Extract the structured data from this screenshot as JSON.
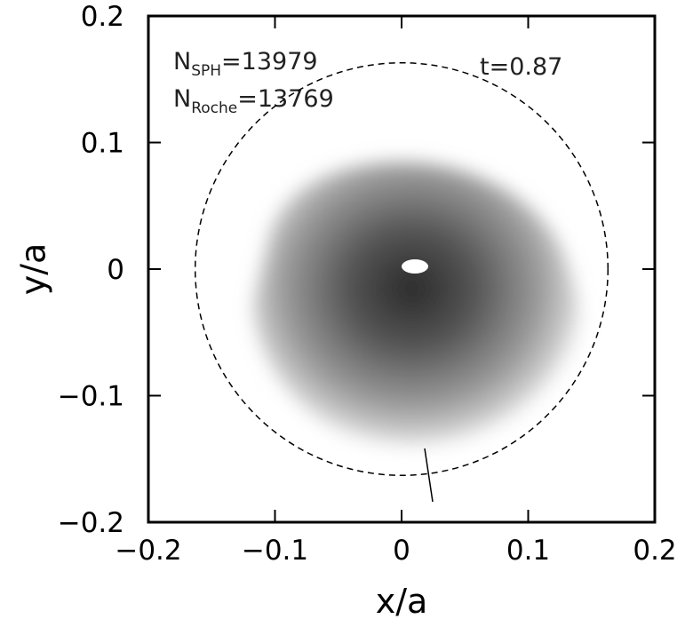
{
  "chart_data": {
    "type": "density-map",
    "xlabel": "x/a",
    "ylabel": "y/a",
    "xlim": [
      -0.2,
      0.2
    ],
    "ylim": [
      -0.2,
      0.2
    ],
    "xticks": [
      {
        "value": -0.2,
        "label": "−0.2"
      },
      {
        "value": -0.1,
        "label": "−0.1"
      },
      0,
      0.1,
      0.2
    ],
    "yticks": [
      {
        "value": -0.2,
        "label": "−0.2"
      },
      {
        "value": -0.1,
        "label": "−0.1"
      },
      0,
      0.1,
      0.2
    ],
    "roche_radius": 0.163,
    "annotations": {
      "n_sph": {
        "symbol": "N",
        "subscript": "SPH",
        "text": "=13979"
      },
      "n_roche": {
        "symbol": "N",
        "subscript": "Roche",
        "text": "=13769"
      },
      "time": "t=0.87"
    }
  }
}
